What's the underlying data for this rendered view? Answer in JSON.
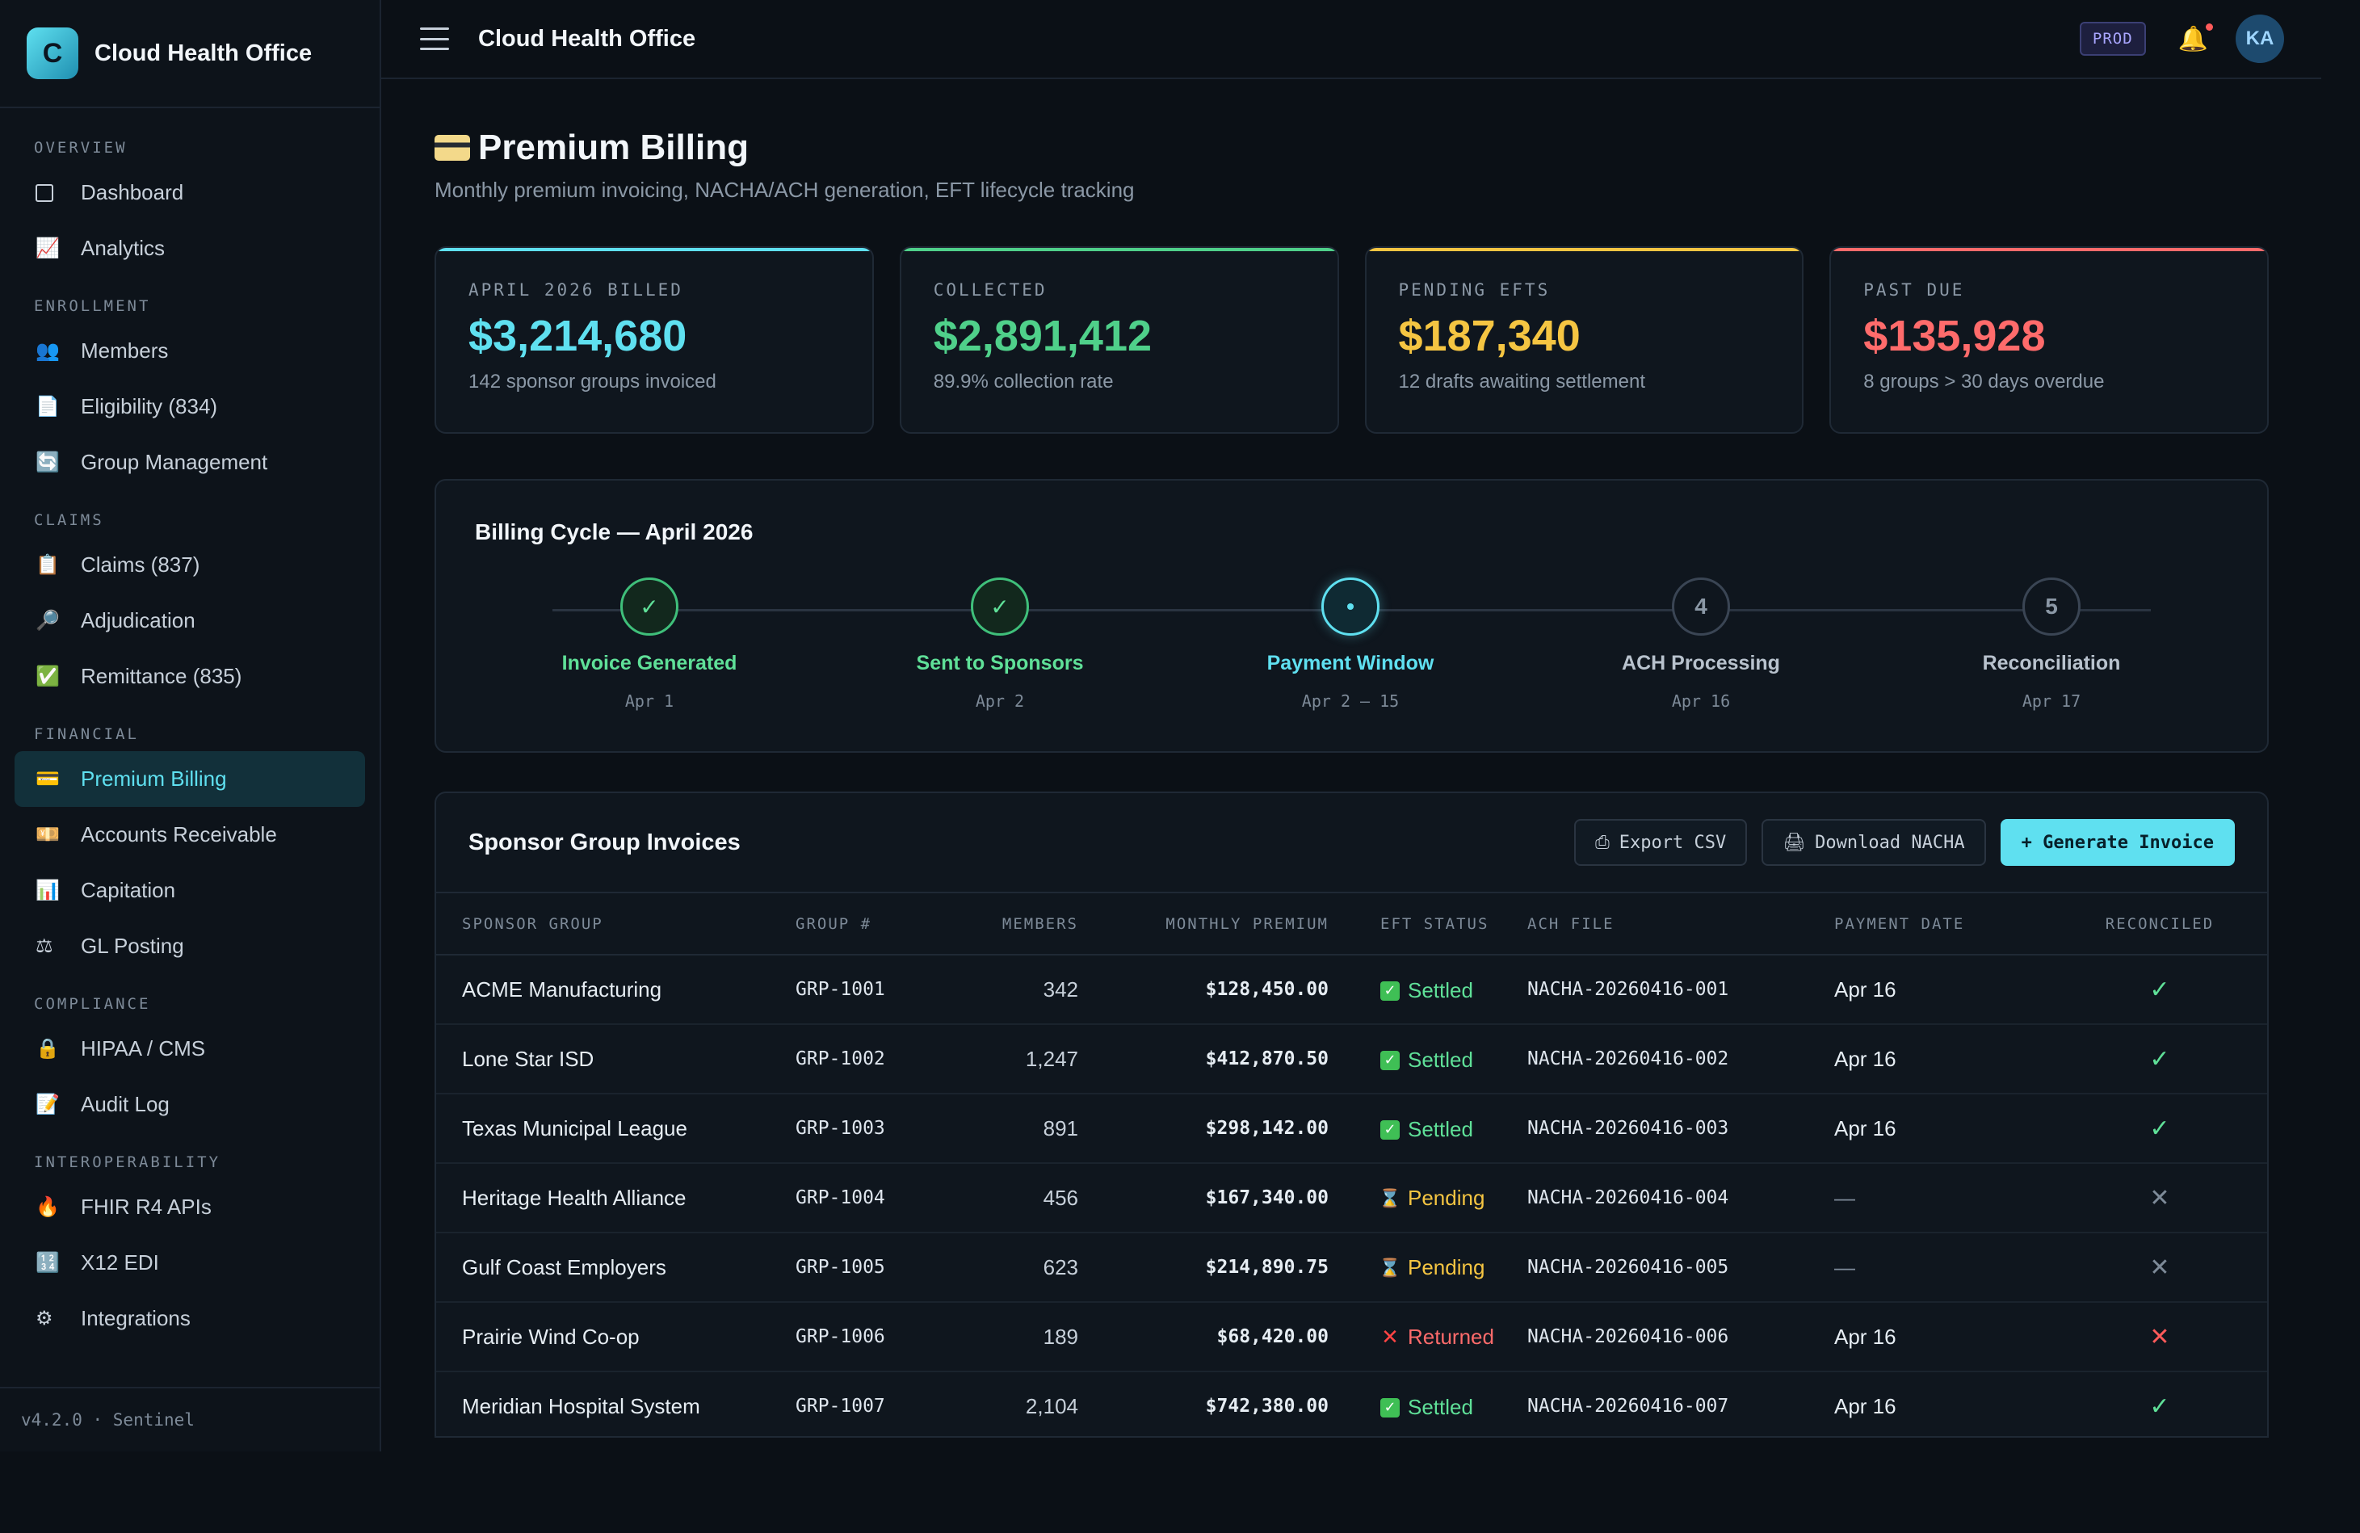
{
  "app": {
    "brand_letter": "C",
    "brand_name": "Cloud Health Office",
    "version": "v4.2.0 · Sentinel"
  },
  "sidebar": {
    "sections": [
      {
        "title": "OVERVIEW",
        "items": [
          {
            "label": "Dashboard",
            "icon": "square-icon"
          },
          {
            "label": "Analytics",
            "icon": "chart-icon",
            "glyph": "📈"
          }
        ]
      },
      {
        "title": "ENROLLMENT",
        "items": [
          {
            "label": "Members",
            "icon": "people-icon",
            "glyph": "👥"
          },
          {
            "label": "Eligibility (834)",
            "icon": "document-icon",
            "glyph": "📄"
          },
          {
            "label": "Group Management",
            "icon": "refresh-icon",
            "glyph": "🔄"
          }
        ]
      },
      {
        "title": "CLAIMS",
        "items": [
          {
            "label": "Claims (837)",
            "icon": "clipboard-icon",
            "glyph": "📋"
          },
          {
            "label": "Adjudication",
            "icon": "magnifier-icon",
            "glyph": "🔎"
          },
          {
            "label": "Remittance (835)",
            "icon": "check-box-icon",
            "glyph": "✅"
          }
        ]
      },
      {
        "title": "FINANCIAL",
        "items": [
          {
            "label": "Premium Billing",
            "icon": "credit-card-icon",
            "glyph": "💳",
            "active": true
          },
          {
            "label": "Accounts Receivable",
            "icon": "money-icon",
            "glyph": "💴"
          },
          {
            "label": "Capitation",
            "icon": "bar-chart-icon",
            "glyph": "📊"
          },
          {
            "label": "GL Posting",
            "icon": "scales-icon",
            "glyph": "⚖"
          }
        ]
      },
      {
        "title": "COMPLIANCE",
        "items": [
          {
            "label": "HIPAA / CMS",
            "icon": "lock-icon",
            "glyph": "🔒"
          },
          {
            "label": "Audit Log",
            "icon": "memo-icon",
            "glyph": "📝"
          }
        ]
      },
      {
        "title": "INTEROPERABILITY",
        "items": [
          {
            "label": "FHIR R4 APIs",
            "icon": "fire-icon",
            "glyph": "🔥"
          },
          {
            "label": "X12 EDI",
            "icon": "numbers-icon",
            "glyph": "🔢"
          },
          {
            "label": "Integrations",
            "icon": "gear-icon",
            "glyph": "⚙"
          }
        ]
      }
    ]
  },
  "topbar": {
    "title": "Cloud Health Office",
    "env_badge": "PROD",
    "avatar_initials": "KA"
  },
  "page": {
    "title": "Premium Billing",
    "subtitle": "Monthly premium invoicing, NACHA/ACH generation, EFT lifecycle tracking"
  },
  "kpis": [
    {
      "label": "APRIL 2026 BILLED",
      "value": "$3,214,680",
      "note": "142 sponsor groups invoiced",
      "color": "#5fe0f0"
    },
    {
      "label": "COLLECTED",
      "value": "$2,891,412",
      "note": "89.9% collection rate",
      "color": "#4fd08a"
    },
    {
      "label": "PENDING EFTS",
      "value": "$187,340",
      "note": "12 drafts awaiting settlement",
      "color": "#f5c542"
    },
    {
      "label": "PAST DUE",
      "value": "$135,928",
      "note": "8 groups > 30 days overdue",
      "color": "#ff6b6b"
    }
  ],
  "billing_cycle": {
    "title": "Billing Cycle — April 2026",
    "steps": [
      {
        "marker": "✓",
        "label": "Invoice Generated",
        "date": "Apr 1",
        "state": "done"
      },
      {
        "marker": "✓",
        "label": "Sent to Sponsors",
        "date": "Apr 2",
        "state": "done"
      },
      {
        "marker": "•",
        "label": "Payment Window",
        "date": "Apr 2 – 15",
        "state": "current"
      },
      {
        "marker": "4",
        "label": "ACH Processing",
        "date": "Apr 16",
        "state": "todo"
      },
      {
        "marker": "5",
        "label": "Reconciliation",
        "date": "Apr 17",
        "state": "todo"
      }
    ]
  },
  "invoices": {
    "title": "Sponsor Group Invoices",
    "actions": {
      "export": "Export CSV",
      "download": "Download NACHA",
      "generate": "+ Generate Invoice"
    },
    "columns": [
      "SPONSOR GROUP",
      "GROUP #",
      "MEMBERS",
      "MONTHLY PREMIUM",
      "EFT STATUS",
      "ACH FILE",
      "PAYMENT DATE",
      "RECONCILED"
    ],
    "rows": [
      {
        "group": "ACME Manufacturing",
        "number": "GRP-1001",
        "members": "342",
        "premium": "$128,450.00",
        "status": "Settled",
        "ach": "NACHA-20260416-001",
        "date": "Apr 16",
        "reconciled": "yes"
      },
      {
        "group": "Lone Star ISD",
        "number": "GRP-1002",
        "members": "1,247",
        "premium": "$412,870.50",
        "status": "Settled",
        "ach": "NACHA-20260416-002",
        "date": "Apr 16",
        "reconciled": "yes"
      },
      {
        "group": "Texas Municipal League",
        "number": "GRP-1003",
        "members": "891",
        "premium": "$298,142.00",
        "status": "Settled",
        "ach": "NACHA-20260416-003",
        "date": "Apr 16",
        "reconciled": "yes"
      },
      {
        "group": "Heritage Health Alliance",
        "number": "GRP-1004",
        "members": "456",
        "premium": "$167,340.00",
        "status": "Pending",
        "ach": "NACHA-20260416-004",
        "date": "—",
        "reconciled": "no"
      },
      {
        "group": "Gulf Coast Employers",
        "number": "GRP-1005",
        "members": "623",
        "premium": "$214,890.75",
        "status": "Pending",
        "ach": "NACHA-20260416-005",
        "date": "—",
        "reconciled": "no"
      },
      {
        "group": "Prairie Wind Co-op",
        "number": "GRP-1006",
        "members": "189",
        "premium": "$68,420.00",
        "status": "Returned",
        "ach": "NACHA-20260416-006",
        "date": "Apr 16",
        "reconciled": "failed"
      },
      {
        "group": "Meridian Hospital System",
        "number": "GRP-1007",
        "members": "2,104",
        "premium": "$742,380.00",
        "status": "Settled",
        "ach": "NACHA-20260416-007",
        "date": "Apr 16",
        "reconciled": "yes"
      }
    ]
  }
}
